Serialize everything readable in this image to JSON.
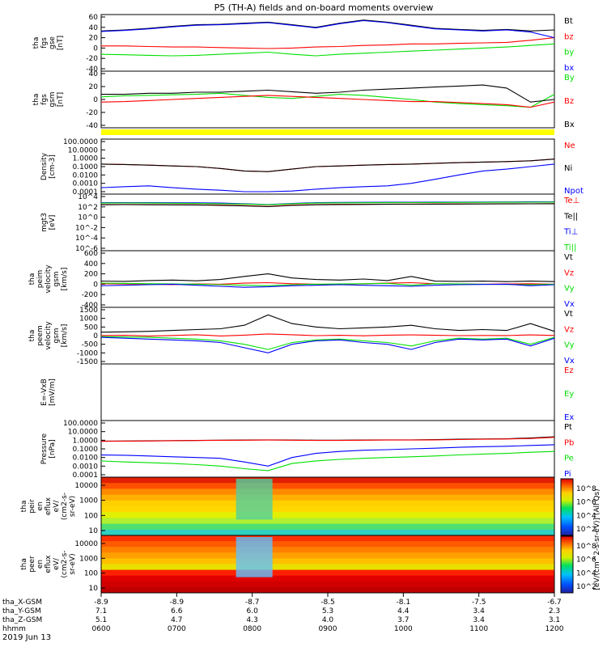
{
  "title": "P5 (TH-A) fields and on-board moments overview",
  "date_label": "2019 Jun 13",
  "colors": {
    "black": "#000000",
    "red": "#ff0000",
    "green": "#00e000",
    "blue": "#0000ff",
    "yellow": "#ffff00"
  },
  "chart_data": [
    {
      "type": "line",
      "panel": "fgs_gse",
      "ylabel_lines": [
        "tha",
        "fgs",
        "gse",
        "[nT]"
      ],
      "ylim": [
        -40,
        60
      ],
      "yticks": [
        "60",
        "40",
        "20",
        "0",
        "-20",
        "-40"
      ],
      "series": [
        {
          "name": "Bt",
          "color": "#000000",
          "values": [
            33,
            35,
            38,
            42,
            45,
            46,
            48,
            50,
            45,
            40,
            48,
            54,
            50,
            44,
            38,
            36,
            34,
            36,
            33,
            35
          ]
        },
        {
          "name": "bz",
          "color": "#ff0000",
          "values": [
            4,
            4,
            3,
            2,
            2,
            1,
            0,
            -1,
            0,
            2,
            3,
            5,
            6,
            8,
            8,
            9,
            10,
            11,
            15,
            20
          ]
        },
        {
          "name": "by",
          "color": "#00e000",
          "values": [
            -12,
            -13,
            -14,
            -15,
            -14,
            -12,
            -10,
            -8,
            -12,
            -15,
            -12,
            -10,
            -8,
            -6,
            -4,
            -2,
            0,
            2,
            5,
            8
          ]
        },
        {
          "name": "bx",
          "color": "#0000ff",
          "values": [
            32,
            34,
            37,
            41,
            44,
            45,
            47,
            49,
            44,
            39,
            47,
            53,
            49,
            43,
            37,
            35,
            33,
            35,
            31,
            20
          ]
        }
      ]
    },
    {
      "type": "line",
      "panel": "fgs_gsm",
      "ylabel_lines": [
        "tha",
        "fgs",
        "gsm",
        "[nT]"
      ],
      "ylim": [
        -50,
        50
      ],
      "yticks": [
        "40",
        "20",
        "0",
        "-20",
        "-40"
      ],
      "series": [
        {
          "name": "By",
          "color": "#00e000",
          "values": [
            5,
            7,
            8,
            9,
            10,
            12,
            8,
            4,
            2,
            6,
            10,
            8,
            4,
            0,
            -5,
            -8,
            -10,
            -12,
            -15,
            10
          ]
        },
        {
          "name": "Bz",
          "color": "#ff0000",
          "values": [
            -5,
            -4,
            -2,
            0,
            2,
            4,
            6,
            8,
            6,
            4,
            2,
            0,
            -2,
            -4,
            -4,
            -6,
            -8,
            -10,
            -15,
            -5
          ]
        },
        {
          "name": "Bx",
          "color": "#000000",
          "values": [
            10,
            10,
            12,
            12,
            14,
            14,
            16,
            18,
            15,
            12,
            14,
            18,
            20,
            22,
            24,
            26,
            28,
            22,
            -5,
            0
          ]
        }
      ]
    },
    {
      "type": "line",
      "panel": "density",
      "ylabel_lines": [
        "Density",
        "[cm-3]"
      ],
      "yscale": "log",
      "ylim": [
        0.0001,
        100
      ],
      "yticks": [
        "100.0000",
        "10.0000",
        "1.0000",
        "0.1000",
        "0.0100",
        "0.0010",
        "0.0001"
      ],
      "series": [
        {
          "name": "Ne",
          "color": "#ff0000",
          "values": [
            0.2,
            0.18,
            0.15,
            0.12,
            0.1,
            0.06,
            0.03,
            0.025,
            0.05,
            0.1,
            0.12,
            0.15,
            0.18,
            0.2,
            0.25,
            0.3,
            0.35,
            0.4,
            0.5,
            0.8
          ]
        },
        {
          "name": "Ni",
          "color": "#000000",
          "values": [
            0.2,
            0.18,
            0.15,
            0.12,
            0.1,
            0.06,
            0.03,
            0.025,
            0.05,
            0.1,
            0.12,
            0.15,
            0.18,
            0.2,
            0.25,
            0.3,
            0.35,
            0.4,
            0.5,
            0.8
          ]
        },
        {
          "name": "Npot",
          "color": "#0000ff",
          "values": [
            0.0003,
            0.0004,
            0.0005,
            0.0003,
            0.0002,
            0.00015,
            0.0001,
            0.0001,
            0.00012,
            0.0002,
            0.0003,
            0.0004,
            0.0005,
            0.001,
            0.003,
            0.01,
            0.03,
            0.05,
            0.1,
            0.2
          ]
        }
      ]
    },
    {
      "type": "line",
      "panel": "mom_t3",
      "ylabel_lines": [
        "mgt3",
        "[eV]"
      ],
      "yscale": "log",
      "ylim": [
        1e-06,
        100000
      ],
      "yticks": [
        "10^4",
        "10^2",
        "10^0",
        "10^-2",
        "10^-4",
        "10^-6"
      ],
      "series": [
        {
          "name": "Te⊥",
          "color": "#ff0000",
          "values": [
            2000,
            2100,
            2000,
            1900,
            1800,
            1500,
            1200,
            800,
            1500,
            2000,
            2200,
            2300,
            2400,
            2500,
            2600,
            2700,
            2800,
            2900,
            3000,
            3100
          ]
        },
        {
          "name": "Te||",
          "color": "#000000",
          "values": [
            1800,
            1900,
            1800,
            1700,
            1600,
            1300,
            1000,
            700,
            1300,
            1800,
            2000,
            2100,
            2200,
            2300,
            2400,
            2500,
            2600,
            2700,
            2800,
            2900
          ]
        },
        {
          "name": "Ti⊥",
          "color": "#0000ff",
          "values": [
            5000,
            5200,
            5000,
            4800,
            4500,
            4000,
            3000,
            2000,
            3500,
            5000,
            5500,
            5800,
            6000,
            6200,
            6400,
            6600,
            6800,
            7000,
            7200,
            7400
          ]
        },
        {
          "name": "Ti||",
          "color": "#00e000",
          "values": [
            4000,
            4200,
            4000,
            3800,
            3500,
            3000,
            2500,
            1800,
            3000,
            4000,
            4500,
            4800,
            5000,
            5200,
            5400,
            5600,
            5800,
            6000,
            6200,
            6400
          ]
        }
      ]
    },
    {
      "type": "line",
      "panel": "peim_velocity",
      "ylabel_lines": [
        "tha",
        "peim",
        "velocity",
        "gsm",
        "[km/s]"
      ],
      "ylim": [
        -400,
        600
      ],
      "yticks": [
        "600",
        "400",
        "200",
        "0",
        "-200",
        "-400"
      ],
      "series": [
        {
          "name": "Vt",
          "color": "#000000",
          "values": [
            60,
            55,
            70,
            80,
            65,
            90,
            150,
            200,
            120,
            90,
            80,
            100,
            70,
            150,
            60,
            55,
            60,
            50,
            60,
            50
          ]
        },
        {
          "name": "Vz",
          "color": "#ff0000",
          "values": [
            10,
            5,
            0,
            -10,
            5,
            0,
            20,
            30,
            10,
            0,
            -5,
            10,
            20,
            30,
            10,
            5,
            0,
            5,
            10,
            0
          ]
        },
        {
          "name": "Vy",
          "color": "#00e000",
          "values": [
            20,
            15,
            10,
            5,
            0,
            -10,
            -20,
            -30,
            -10,
            0,
            5,
            10,
            15,
            -20,
            10,
            5,
            0,
            -5,
            -10,
            0
          ]
        },
        {
          "name": "Vx",
          "color": "#0000ff",
          "values": [
            -30,
            -20,
            -10,
            0,
            -20,
            -40,
            -60,
            -50,
            -30,
            -20,
            -10,
            -20,
            -30,
            -40,
            -20,
            -10,
            -5,
            0,
            -30,
            -10
          ]
        }
      ]
    },
    {
      "type": "line",
      "panel": "peem_velocity",
      "ylabel_lines": [
        "tha",
        "peem",
        "velocity",
        "gsm",
        "[km/s]"
      ],
      "ylim": [
        -1500,
        1500
      ],
      "yticks": [
        "1500",
        "1000",
        "500",
        "0",
        "-500",
        "-1000",
        "-1500"
      ],
      "series": [
        {
          "name": "Vt",
          "color": "#000000",
          "values": [
            200,
            220,
            250,
            300,
            350,
            400,
            600,
            1200,
            700,
            500,
            400,
            450,
            500,
            600,
            400,
            300,
            350,
            300,
            700,
            250
          ]
        },
        {
          "name": "Vz",
          "color": "#ff0000",
          "values": [
            0,
            20,
            -30,
            10,
            50,
            -20,
            30,
            100,
            50,
            0,
            20,
            -10,
            30,
            40,
            20,
            0,
            10,
            5,
            40,
            10
          ]
        },
        {
          "name": "Vy",
          "color": "#00e000",
          "values": [
            -50,
            -80,
            -100,
            -150,
            -200,
            -300,
            -500,
            -800,
            -400,
            -250,
            -200,
            -300,
            -400,
            -600,
            -300,
            -150,
            -200,
            -150,
            -500,
            -100
          ]
        },
        {
          "name": "Vx",
          "color": "#0000ff",
          "values": [
            -100,
            -150,
            -200,
            -250,
            -300,
            -400,
            -700,
            -1000,
            -500,
            -300,
            -250,
            -400,
            -500,
            -800,
            -400,
            -200,
            -250,
            -200,
            -600,
            -150
          ]
        }
      ]
    },
    {
      "type": "line",
      "panel": "efield",
      "ylabel_lines": [
        "E=-VxB",
        "[mV/m]"
      ],
      "series": [
        {
          "name": "Ez",
          "color": "#ff0000",
          "values": []
        },
        {
          "name": "Ey",
          "color": "#00e000",
          "values": []
        },
        {
          "name": "Ex",
          "color": "#0000ff",
          "values": []
        }
      ]
    },
    {
      "type": "line",
      "panel": "pressure",
      "ylabel_lines": [
        "Pressure",
        "[nPa]"
      ],
      "yscale": "log",
      "ylim": [
        0.0001,
        100
      ],
      "yticks": [
        "100.0000",
        "10.0000",
        "1.0000",
        "0.1000",
        "0.0100",
        "0.0010",
        "0.0001"
      ],
      "series": [
        {
          "name": "Pt",
          "color": "#000000",
          "values": [
            0.8,
            0.82,
            0.85,
            0.9,
            0.95,
            1.0,
            1.05,
            1.1,
            1.05,
            1.0,
            1.0,
            1.05,
            1.1,
            1.1,
            1.2,
            1.3,
            1.4,
            1.5,
            1.8,
            2.5
          ]
        },
        {
          "name": "Pb",
          "color": "#ff0000",
          "values": [
            0.75,
            0.8,
            0.82,
            0.88,
            0.92,
            0.98,
            1.0,
            1.05,
            1.0,
            0.95,
            0.95,
            1.0,
            1.05,
            1.05,
            1.1,
            1.2,
            1.3,
            1.4,
            1.6,
            2.2
          ]
        },
        {
          "name": "Pe",
          "color": "#00e000",
          "values": [
            0.004,
            0.003,
            0.0025,
            0.002,
            0.0015,
            0.001,
            0.0005,
            0.0003,
            0.002,
            0.004,
            0.006,
            0.008,
            0.01,
            0.012,
            0.015,
            0.02,
            0.025,
            0.03,
            0.04,
            0.05
          ]
        },
        {
          "name": "Pi",
          "color": "#0000ff",
          "values": [
            0.02,
            0.018,
            0.015,
            0.012,
            0.01,
            0.008,
            0.003,
            0.001,
            0.01,
            0.03,
            0.05,
            0.07,
            0.08,
            0.1,
            0.12,
            0.15,
            0.18,
            0.2,
            0.25,
            0.3
          ]
        }
      ]
    },
    {
      "type": "heatmap",
      "panel": "peir_en_eflux",
      "ylabel_lines": [
        "tha",
        "peir",
        "en",
        "eflux",
        "eV/",
        "(cm2-s-",
        "sr-eV)"
      ],
      "yscale": "log",
      "yticks": [
        "10000",
        "1000",
        "100",
        "10"
      ]
    },
    {
      "type": "heatmap",
      "panel": "peer_en_eflux",
      "ylabel_lines": [
        "tha",
        "peer",
        "en",
        "eflux",
        "eV/",
        "(cm2-s-",
        "sr-eV)"
      ],
      "yscale": "log",
      "yticks": [
        "10000",
        "1000",
        "100",
        "10"
      ]
    }
  ],
  "colorbar_1": {
    "label": "[eV/(cm^2-s-sr-eV)] (All Qs)",
    "ticks": [
      "10^8",
      "10^6",
      "10^4",
      "10^2"
    ]
  },
  "colorbar_2": {
    "ticks": [
      "10^8",
      "10^6",
      "10^4",
      "10^2"
    ]
  },
  "xaxis": {
    "rows": [
      {
        "name": "tha_X-GSM",
        "values": [
          "-8.9",
          "-8.9",
          "-8.7",
          "-8.5",
          "-8.1",
          "-7.5",
          "-6.7"
        ]
      },
      {
        "name": "tha_Y-GSM",
        "values": [
          "7.1",
          "6.6",
          "6.0",
          "5.3",
          "4.4",
          "3.4",
          "2.3"
        ]
      },
      {
        "name": "tha_Z-GSM",
        "values": [
          "5.1",
          "4.7",
          "4.3",
          "4.0",
          "3.7",
          "3.4",
          "3.1"
        ]
      },
      {
        "name": "hhmm",
        "values": [
          "0600",
          "0700",
          "0800",
          "0900",
          "1000",
          "1100",
          "1200"
        ]
      }
    ]
  }
}
